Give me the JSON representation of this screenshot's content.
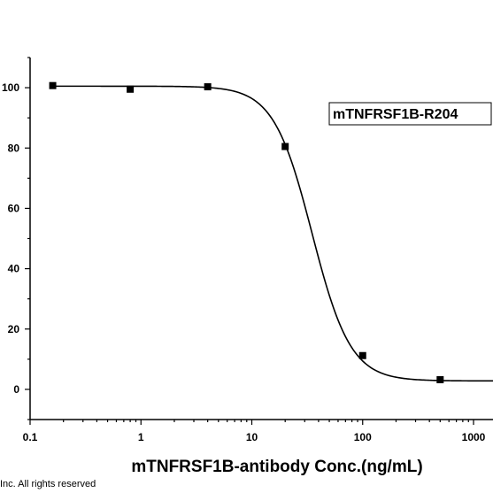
{
  "chart_data": {
    "type": "scatter",
    "x_scale": "log",
    "xlim": [
      0.1,
      1600
    ],
    "ylim": [
      -10,
      110
    ],
    "xlabel": "mTNFRSF1B-antibody Conc.(ng/mL)",
    "ylabel": "",
    "x_ticks": [
      {
        "value": 0.1,
        "label": "0.1"
      },
      {
        "value": 1,
        "label": "1"
      },
      {
        "value": 10,
        "label": "10"
      },
      {
        "value": 100,
        "label": "100"
      },
      {
        "value": 1000,
        "label": "1000"
      }
    ],
    "y_ticks": [
      {
        "value": 0,
        "label": "0"
      },
      {
        "value": 20,
        "label": "20"
      },
      {
        "value": 40,
        "label": "40"
      },
      {
        "value": 60,
        "label": "60"
      },
      {
        "value": 80,
        "label": "80"
      },
      {
        "value": 100,
        "label": "100"
      }
    ],
    "series": [
      {
        "name": "mTNFRSF1B-R204",
        "points": [
          {
            "x": 0.16,
            "y": 100.7
          },
          {
            "x": 0.8,
            "y": 99.5
          },
          {
            "x": 4,
            "y": 100.3
          },
          {
            "x": 20,
            "y": 80.5
          },
          {
            "x": 100,
            "y": 11.2
          },
          {
            "x": 500,
            "y": 3.2
          }
        ],
        "fit": {
          "model": "4PL",
          "top": 100.5,
          "bottom": 2.8,
          "ec50": 35,
          "hill": 2.5
        }
      }
    ],
    "legend": {
      "position": "top-right",
      "boxed": true
    },
    "grid": false,
    "marker": "square",
    "line_color": "#000000"
  },
  "footer": {
    "text": "Inc. All rights reserved"
  }
}
